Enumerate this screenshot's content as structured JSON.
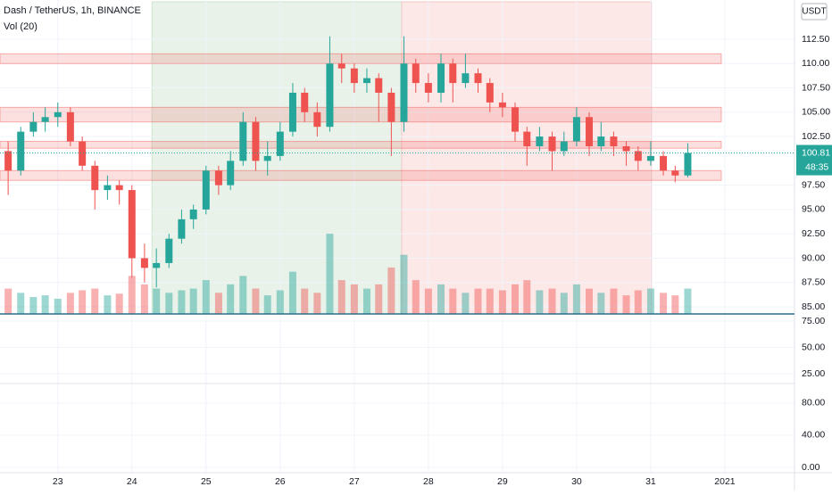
{
  "chart_data": {
    "type": "candlestick",
    "title": "Dash / TetherUS, 1h, BINANCE",
    "indicator": "Vol (20)",
    "currency": "USDT",
    "last_price": 100.81,
    "countdown": "48:35",
    "up_color": "#26a69a",
    "down_color": "#ef5350",
    "x": [
      22.33,
      22.5,
      22.67,
      22.83,
      23,
      23.17,
      23.33,
      23.5,
      23.67,
      23.83,
      24,
      24.17,
      24.33,
      24.5,
      24.67,
      24.83,
      25,
      25.17,
      25.33,
      25.5,
      25.67,
      25.83,
      26,
      26.17,
      26.33,
      26.5,
      26.67,
      26.83,
      27,
      27.17,
      27.33,
      27.5,
      27.67,
      27.83,
      28,
      28.17,
      28.33,
      28.5,
      28.67,
      28.83,
      29,
      29.17,
      29.33,
      29.5,
      29.67,
      29.83,
      30,
      30.17,
      30.33,
      30.5,
      30.67,
      30.83,
      31,
      31.17,
      31.33,
      31.5
    ],
    "open": [
      101,
      99,
      103,
      104,
      104.5,
      105,
      102,
      99.5,
      97,
      97.5,
      97,
      90,
      89,
      89.5,
      92,
      94,
      95,
      99,
      97.5,
      100,
      104,
      100,
      100.5,
      103,
      107,
      105,
      103.5,
      110,
      109.5,
      108,
      108.5,
      107,
      104,
      110,
      108,
      107,
      110,
      108,
      109,
      108,
      106,
      105.5,
      103,
      101.5,
      102.5,
      101,
      102,
      104.5,
      101.5,
      102.5,
      101.5,
      101,
      100,
      100.5,
      99,
      98.5
    ],
    "high": [
      102,
      103.5,
      105,
      105.5,
      106,
      105.5,
      102.5,
      100,
      98.5,
      98,
      97.5,
      91.5,
      91,
      92.5,
      95,
      95.5,
      99.5,
      99.5,
      101,
      105,
      104.5,
      102,
      104,
      108,
      107.5,
      106,
      112.8,
      111,
      110,
      109.5,
      109,
      107.5,
      112.8,
      110.5,
      109,
      111,
      110.5,
      111,
      109.5,
      108.5,
      107,
      106,
      103.5,
      103.5,
      103,
      103,
      105.5,
      105,
      104,
      103,
      102,
      101.5,
      102,
      101,
      99.5,
      101.8
    ],
    "low": [
      96.5,
      98.5,
      102.5,
      103,
      103.5,
      101.5,
      99,
      95,
      96,
      95.5,
      88,
      87.5,
      87,
      89,
      91.5,
      93,
      94.5,
      96.5,
      97,
      99.5,
      99,
      98.5,
      100,
      102.5,
      104,
      102.5,
      103,
      108,
      107,
      107,
      104,
      100.5,
      103,
      107,
      106,
      106,
      106,
      107.5,
      107,
      105,
      104.5,
      102,
      99.5,
      101,
      99,
      100.5,
      101.5,
      100.5,
      101,
      100.5,
      99.5,
      99,
      99.5,
      98.5,
      97.8,
      98.3
    ],
    "close": [
      99,
      103,
      104,
      104.5,
      105,
      102,
      99.5,
      97,
      97.5,
      97,
      90,
      89,
      89.5,
      92,
      94,
      95,
      99,
      97.5,
      100,
      104,
      100,
      100.5,
      103,
      107,
      105,
      103.5,
      110,
      109.5,
      108,
      108.5,
      107,
      104,
      110,
      108,
      107,
      110,
      108,
      109,
      108,
      106,
      105.5,
      103,
      101.5,
      102.5,
      101,
      102,
      104.5,
      101.5,
      102.5,
      101.5,
      101,
      100,
      100.5,
      99,
      98.5,
      100.81
    ],
    "volume": [
      30,
      25,
      20,
      22,
      18,
      25,
      28,
      30,
      22,
      24,
      45,
      35,
      30,
      25,
      28,
      30,
      40,
      25,
      35,
      45,
      30,
      22,
      28,
      50,
      30,
      25,
      95,
      40,
      35,
      30,
      35,
      55,
      70,
      40,
      30,
      35,
      30,
      25,
      30,
      30,
      28,
      35,
      40,
      28,
      30,
      25,
      35,
      30,
      25,
      30,
      22,
      28,
      30,
      25,
      22,
      30
    ],
    "xlim": [
      22.22,
      32.94
    ],
    "xticks": [
      23,
      24,
      25,
      26,
      27,
      28,
      29,
      30,
      31,
      {
        "value": 32,
        "label": "2021"
      }
    ],
    "ylim": [
      84.27,
      116.53
    ],
    "yticks": [
      {
        "value": 112.5,
        "label": "112.50"
      },
      {
        "value": 110,
        "label": "110.00"
      },
      {
        "value": 107.5,
        "label": "107.50"
      },
      {
        "value": 105,
        "label": "105.00"
      },
      {
        "value": 102.5,
        "label": "102.50"
      },
      {
        "value": 97.5,
        "label": "97.50"
      },
      {
        "value": 95,
        "label": "95.00"
      },
      {
        "value": 92.5,
        "label": "92.50"
      },
      {
        "value": 90,
        "label": "90.00"
      },
      {
        "value": 87.5,
        "label": "87.50"
      },
      {
        "value": 85,
        "label": "85.00"
      }
    ],
    "pane2_ylim": [
      15.7,
      81.8
    ],
    "pane2_yticks": [
      {
        "value": 75,
        "label": "75.00"
      },
      {
        "value": 50,
        "label": "50.00"
      },
      {
        "value": 25,
        "label": "25.00"
      }
    ],
    "pane3_ylim": [
      -6.7,
      104.4
    ],
    "pane3_yticks": [
      {
        "value": 80,
        "label": "80.00"
      },
      {
        "value": 40,
        "label": "40.00"
      },
      {
        "value": 0,
        "label": "0.00"
      }
    ],
    "zones": [
      {
        "low": 110,
        "high": 111
      },
      {
        "low": 104,
        "high": 105.5
      },
      {
        "low": 101.3,
        "high": 102
      },
      {
        "low": 98,
        "high": 99
      }
    ],
    "ranges": [
      {
        "from": 24.27,
        "to": 27.64,
        "color": "#e8f2e8"
      },
      {
        "from": 27.64,
        "to": 31.01,
        "color": "#fde8e8"
      }
    ],
    "grid": true
  }
}
